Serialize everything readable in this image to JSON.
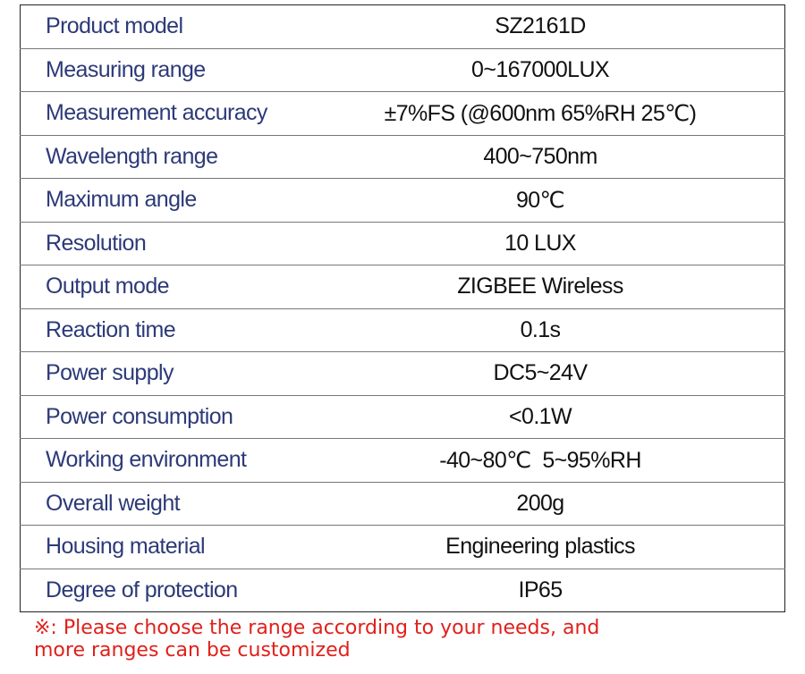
{
  "table": {
    "rows": [
      [
        "Product model",
        "SZ2161D"
      ],
      [
        "Measuring range",
        "0~167000LUX"
      ],
      [
        "Measurement accuracy",
        "±7%FS (@600nm 65%RH 25℃)"
      ],
      [
        "Wavelength range",
        "400~750nm"
      ],
      [
        "Maximum angle",
        "90℃"
      ],
      [
        "Resolution",
        "10 LUX"
      ],
      [
        "Output mode",
        "ZIGBEE Wireless"
      ],
      [
        "Reaction time",
        "0.1s"
      ],
      [
        "Power supply",
        "DC5~24V"
      ],
      [
        "Power consumption",
        "<0.1W"
      ],
      [
        "Working environment",
        "-40~80℃  5~95%RH"
      ],
      [
        "Overall weight",
        "200g"
      ],
      [
        "Housing material",
        "Engineering plastics"
      ],
      [
        "Degree of protection",
        "IP65"
      ]
    ]
  },
  "note": {
    "lines": [
      "※: Please choose the range according to your needs, and",
      "more ranges can be customized"
    ]
  }
}
